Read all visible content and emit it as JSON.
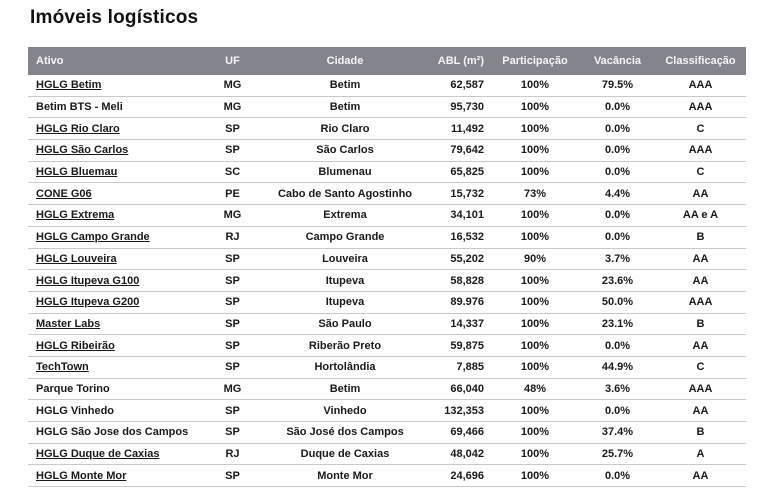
{
  "page": {
    "title": "Imóveis logísticos"
  },
  "colors": {
    "header_bg": "#84848C",
    "header_text": "#F6F6F8",
    "row_text": "#1A1A1A",
    "divider": "#C9C9C9",
    "title_text": "#111111"
  },
  "table": {
    "columns": [
      {
        "key": "ativo",
        "label": "Ativo",
        "align": "left"
      },
      {
        "key": "uf",
        "label": "UF",
        "align": "center"
      },
      {
        "key": "cidade",
        "label": "Cidade",
        "align": "center"
      },
      {
        "key": "abl",
        "label": "ABL (m²)",
        "align": "right"
      },
      {
        "key": "participacao",
        "label": "Participação",
        "align": "center"
      },
      {
        "key": "vacancia",
        "label": "Vacância",
        "align": "center"
      },
      {
        "key": "classificacao",
        "label": "Classificação",
        "align": "center"
      }
    ],
    "rows": [
      {
        "ativo": "HGLG Betim",
        "link": true,
        "uf": "MG",
        "cidade": "Betim",
        "abl": "62,587",
        "participacao": "100%",
        "vacancia": "79.5%",
        "classificacao": "AAA"
      },
      {
        "ativo": "Betim BTS - Meli",
        "link": false,
        "uf": "MG",
        "cidade": "Betim",
        "abl": "95,730",
        "participacao": "100%",
        "vacancia": "0.0%",
        "classificacao": "AAA"
      },
      {
        "ativo": "HGLG Rio Claro",
        "link": true,
        "uf": "SP",
        "cidade": "Rio Claro",
        "abl": "11,492",
        "participacao": "100%",
        "vacancia": "0.0%",
        "classificacao": "C"
      },
      {
        "ativo": "HGLG São Carlos",
        "link": true,
        "uf": "SP",
        "cidade": "São Carlos",
        "abl": "79,642",
        "participacao": "100%",
        "vacancia": "0.0%",
        "classificacao": "AAA"
      },
      {
        "ativo": "HGLG Bluemau",
        "link": true,
        "uf": "SC",
        "cidade": "Blumenau",
        "abl": "65,825",
        "participacao": "100%",
        "vacancia": "0.0%",
        "classificacao": "C"
      },
      {
        "ativo": "CONE G06",
        "link": true,
        "uf": "PE",
        "cidade": "Cabo de Santo Agostinho",
        "abl": "15,732",
        "participacao": "73%",
        "vacancia": "4.4%",
        "classificacao": "AA"
      },
      {
        "ativo": "HGLG Extrema",
        "link": true,
        "uf": "MG",
        "cidade": "Extrema",
        "abl": "34,101",
        "participacao": "100%",
        "vacancia": "0.0%",
        "classificacao": "AA e A"
      },
      {
        "ativo": "HGLG Campo Grande",
        "link": true,
        "uf": "RJ",
        "cidade": "Campo Grande",
        "abl": "16,532",
        "participacao": "100%",
        "vacancia": "0.0%",
        "classificacao": "B"
      },
      {
        "ativo": "HGLG Louveira",
        "link": true,
        "uf": "SP",
        "cidade": "Louveira",
        "abl": "55,202",
        "participacao": "90%",
        "vacancia": "3.7%",
        "classificacao": "AA"
      },
      {
        "ativo": "HGLG Itupeva G100",
        "link": true,
        "uf": "SP",
        "cidade": "Itupeva",
        "abl": "58,828",
        "participacao": "100%",
        "vacancia": "23.6%",
        "classificacao": "AA"
      },
      {
        "ativo": "HGLG Itupeva G200",
        "link": true,
        "uf": "SP",
        "cidade": "Itupeva",
        "abl": "89.976",
        "participacao": "100%",
        "vacancia": "50.0%",
        "classificacao": "AAA"
      },
      {
        "ativo": "Master Labs",
        "link": true,
        "uf": "SP",
        "cidade": "São Paulo",
        "abl": "14,337",
        "participacao": "100%",
        "vacancia": "23.1%",
        "classificacao": "B"
      },
      {
        "ativo": "HGLG Ribeirão",
        "link": true,
        "uf": "SP",
        "cidade": "Riberão Preto",
        "abl": "59,875",
        "participacao": "100%",
        "vacancia": "0.0%",
        "classificacao": "AA"
      },
      {
        "ativo": "TechTown",
        "link": true,
        "uf": "SP",
        "cidade": "Hortolândia",
        "abl": "7,885",
        "participacao": "100%",
        "vacancia": "44.9%",
        "classificacao": "C"
      },
      {
        "ativo": "Parque Torino",
        "link": false,
        "uf": "MG",
        "cidade": "Betim",
        "abl": "66,040",
        "participacao": "48%",
        "vacancia": "3.6%",
        "classificacao": "AAA"
      },
      {
        "ativo": "HGLG Vinhedo",
        "link": false,
        "uf": "SP",
        "cidade": "Vinhedo",
        "abl": "132,353",
        "participacao": "100%",
        "vacancia": "0.0%",
        "classificacao": "AA"
      },
      {
        "ativo": "HGLG São Jose dos Campos",
        "link": false,
        "uf": "SP",
        "cidade": "São José dos Campos",
        "abl": "69,466",
        "participacao": "100%",
        "vacancia": "37.4%",
        "classificacao": "B"
      },
      {
        "ativo": "HGLG Duque de Caxias",
        "link": true,
        "uf": "RJ",
        "cidade": "Duque de Caxias",
        "abl": "48,042",
        "participacao": "100%",
        "vacancia": "25.7%",
        "classificacao": "A"
      },
      {
        "ativo": "HGLG Monte Mor",
        "link": true,
        "uf": "SP",
        "cidade": "Monte Mor",
        "abl": "24,696",
        "participacao": "100%",
        "vacancia": "0.0%",
        "classificacao": "AA"
      }
    ]
  }
}
